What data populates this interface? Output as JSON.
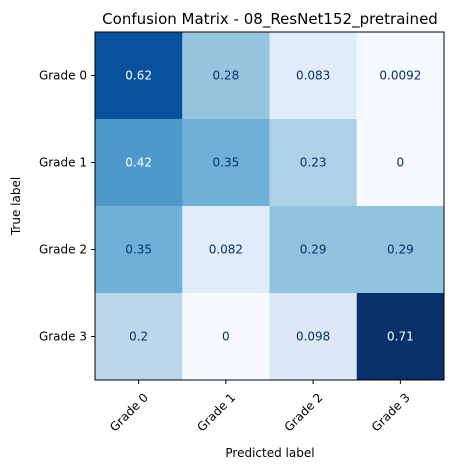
{
  "chart_data": {
    "type": "heatmap",
    "title": "Confusion Matrix - 08_ResNet152_pretrained",
    "xlabel": "Predicted label",
    "ylabel": "True label",
    "x_categories": [
      "Grade 0",
      "Grade 1",
      "Grade 2",
      "Grade 3"
    ],
    "y_categories": [
      "Grade 0",
      "Grade 1",
      "Grade 2",
      "Grade 3"
    ],
    "values": [
      [
        0.62,
        0.28,
        0.083,
        0.0092
      ],
      [
        0.42,
        0.35,
        0.23,
        0
      ],
      [
        0.35,
        0.082,
        0.29,
        0.29
      ],
      [
        0.2,
        0,
        0.098,
        0.71
      ]
    ],
    "value_labels": [
      [
        "0.62",
        "0.28",
        "0.083",
        "0.0092"
      ],
      [
        "0.42",
        "0.35",
        "0.23",
        "0"
      ],
      [
        "0.35",
        "0.082",
        "0.29",
        "0.29"
      ],
      [
        "0.2",
        "0",
        "0.098",
        "0.71"
      ]
    ],
    "vmin": 0,
    "vmax": 0.71,
    "colormap": "Blues",
    "colorbar": false,
    "text_colors": {
      "dark_cell": "#ffffff",
      "light_cell": "#08306b"
    }
  }
}
